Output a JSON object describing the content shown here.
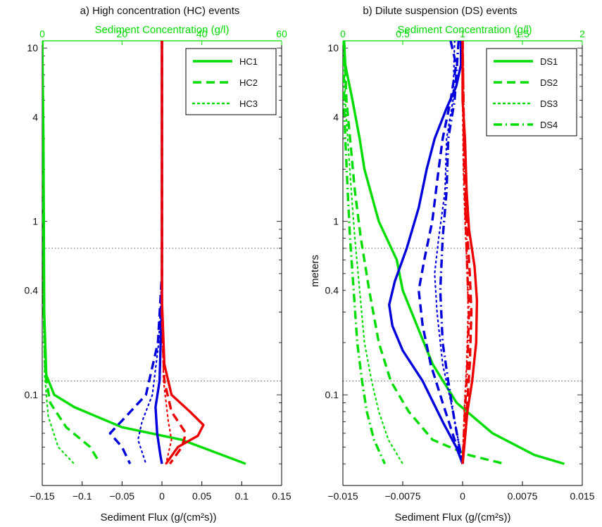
{
  "chart_data": [
    {
      "type": "line",
      "title": "a) High concentration (HC) events",
      "xlabel": "Sediment Flux (g/(cm²s))",
      "x2label": "Sediment Concentration (g/l)",
      "ylabel": "meters",
      "xlim": [
        -0.15,
        0.15
      ],
      "x2lim": [
        0,
        60
      ],
      "ylim": [
        0.03,
        11
      ],
      "yscale": "log",
      "xticks": [
        "-0.15",
        "-0.1",
        "-0.05",
        "0",
        "0.05",
        "0.1",
        "0.15"
      ],
      "x2ticks": [
        "0",
        "20",
        "40",
        "60"
      ],
      "yticks": [
        "0.1",
        "0.4",
        "1",
        "4",
        "10"
      ],
      "hlines": [
        0.7,
        0.12
      ],
      "legend_position": "top-right",
      "legend": [
        {
          "name": "HC1",
          "dash": "solid"
        },
        {
          "name": "HC2",
          "dash": "dashed"
        },
        {
          "name": "HC3",
          "dotted": true
        }
      ],
      "colors": {
        "concentration": "#00dd00",
        "downward_flux": "#0000dd",
        "upward_flux": "#ee0000"
      },
      "series": [
        {
          "name": "HC1",
          "kind": "concentration",
          "dash": "solid",
          "points": [
            [
              0,
              11
            ],
            [
              0.3,
              3
            ],
            [
              0.5,
              0.3
            ],
            [
              1,
              0.13
            ],
            [
              3,
              0.1
            ],
            [
              8,
              0.085
            ],
            [
              20,
              0.065
            ],
            [
              35,
              0.055
            ],
            [
              51,
              0.04
            ]
          ]
        },
        {
          "name": "HC2",
          "kind": "concentration",
          "dash": "dashed",
          "points": [
            [
              0,
              11
            ],
            [
              0.2,
              3
            ],
            [
              0.4,
              0.3
            ],
            [
              0.8,
              0.13
            ],
            [
              2,
              0.09
            ],
            [
              6,
              0.065
            ],
            [
              12,
              0.05
            ],
            [
              14,
              0.042
            ]
          ]
        },
        {
          "name": "HC3",
          "kind": "concentration",
          "dash": "dotted",
          "points": [
            [
              0,
              11
            ],
            [
              0.2,
              3
            ],
            [
              0.3,
              0.3
            ],
            [
              0.6,
              0.13
            ],
            [
              1.5,
              0.075
            ],
            [
              4,
              0.05
            ],
            [
              8,
              0.04
            ]
          ]
        },
        {
          "name": "HC1",
          "kind": "downward_flux",
          "dash": "solid",
          "points": [
            [
              0,
              11
            ],
            [
              0,
              0.35
            ],
            [
              -0.003,
              0.12
            ],
            [
              -0.008,
              0.085
            ],
            [
              -0.006,
              0.06
            ],
            [
              -0.002,
              0.045
            ],
            [
              0,
              0.04
            ]
          ]
        },
        {
          "name": "HC2",
          "kind": "downward_flux",
          "dash": "dashed",
          "points": [
            [
              0,
              11
            ],
            [
              0,
              0.5
            ],
            [
              -0.005,
              0.2
            ],
            [
              -0.02,
              0.1
            ],
            [
              -0.045,
              0.075
            ],
            [
              -0.065,
              0.06
            ],
            [
              -0.05,
              0.05
            ],
            [
              -0.04,
              0.04
            ]
          ]
        },
        {
          "name": "HC3",
          "kind": "downward_flux",
          "dash": "dotted",
          "points": [
            [
              0,
              11
            ],
            [
              0,
              0.5
            ],
            [
              -0.004,
              0.2
            ],
            [
              -0.012,
              0.1
            ],
            [
              -0.025,
              0.07
            ],
            [
              -0.03,
              0.055
            ],
            [
              -0.02,
              0.04
            ]
          ]
        },
        {
          "name": "HC1",
          "kind": "upward_flux",
          "dash": "solid",
          "points": [
            [
              0,
              11
            ],
            [
              0,
              0.35
            ],
            [
              0.003,
              0.15
            ],
            [
              0.012,
              0.1
            ],
            [
              0.035,
              0.08
            ],
            [
              0.052,
              0.067
            ],
            [
              0.045,
              0.058
            ],
            [
              0.02,
              0.05
            ],
            [
              0.005,
              0.04
            ]
          ]
        },
        {
          "name": "HC2",
          "kind": "upward_flux",
          "dash": "dashed",
          "points": [
            [
              0,
              11
            ],
            [
              0,
              0.3
            ],
            [
              0.003,
              0.12
            ],
            [
              0.012,
              0.08
            ],
            [
              0.03,
              0.06
            ],
            [
              0.025,
              0.05
            ],
            [
              0.01,
              0.04
            ]
          ]
        },
        {
          "name": "HC3",
          "kind": "upward_flux",
          "dash": "dotted",
          "points": [
            [
              0,
              11
            ],
            [
              0,
              0.3
            ],
            [
              0.002,
              0.12
            ],
            [
              0.008,
              0.07
            ],
            [
              0.012,
              0.055
            ],
            [
              0.005,
              0.04
            ]
          ]
        }
      ]
    },
    {
      "type": "line",
      "title": "b) Dilute suspension (DS) events",
      "xlabel": "Sediment Flux (g/(cm²s))",
      "x2label": "Sediment Concentration (g/l)",
      "ylabel": "meters",
      "xlim": [
        -0.015,
        0.015
      ],
      "x2lim": [
        0,
        2
      ],
      "ylim": [
        0.03,
        11
      ],
      "yscale": "log",
      "xticks": [
        "-0.015",
        "-0.0075",
        "0",
        "0.0075",
        "0.015"
      ],
      "x2ticks": [
        "0",
        "0.5",
        "1",
        "1.5",
        "2"
      ],
      "yticks": [
        "0.1",
        "0.4",
        "1",
        "4",
        "10"
      ],
      "hlines": [
        0.7,
        0.12
      ],
      "legend_position": "top-right",
      "legend": [
        {
          "name": "DS1",
          "dash": "solid"
        },
        {
          "name": "DS2",
          "dash": "dashed"
        },
        {
          "name": "DS3",
          "dotted": true
        },
        {
          "name": "DS4",
          "dash": "dashdot"
        }
      ],
      "colors": {
        "concentration": "#00dd00",
        "downward_flux": "#0000dd",
        "upward_flux": "#ee0000"
      },
      "series": [
        {
          "name": "DS1",
          "kind": "concentration",
          "dash": "solid",
          "points": [
            [
              0.01,
              11
            ],
            [
              0.02,
              8
            ],
            [
              0.08,
              5
            ],
            [
              0.14,
              3
            ],
            [
              0.18,
              2
            ],
            [
              0.3,
              1
            ],
            [
              0.45,
              0.6
            ],
            [
              0.5,
              0.4
            ],
            [
              0.62,
              0.25
            ],
            [
              0.75,
              0.15
            ],
            [
              0.95,
              0.09
            ],
            [
              1.25,
              0.06
            ],
            [
              1.6,
              0.045
            ],
            [
              1.85,
              0.04
            ]
          ]
        },
        {
          "name": "DS2",
          "kind": "concentration",
          "dash": "dashed",
          "points": [
            [
              0.01,
              11
            ],
            [
              0.03,
              5
            ],
            [
              0.06,
              3
            ],
            [
              0.1,
              1.5
            ],
            [
              0.15,
              0.8
            ],
            [
              0.22,
              0.4
            ],
            [
              0.3,
              0.2
            ],
            [
              0.4,
              0.12
            ],
            [
              0.55,
              0.08
            ],
            [
              0.75,
              0.055
            ],
            [
              1.05,
              0.045
            ],
            [
              1.35,
              0.04
            ]
          ]
        },
        {
          "name": "DS3",
          "kind": "concentration",
          "dash": "dotted",
          "points": [
            [
              0.01,
              11
            ],
            [
              0.02,
              5
            ],
            [
              0.04,
              3
            ],
            [
              0.07,
              1.5
            ],
            [
              0.1,
              0.8
            ],
            [
              0.14,
              0.4
            ],
            [
              0.18,
              0.2
            ],
            [
              0.24,
              0.12
            ],
            [
              0.3,
              0.08
            ],
            [
              0.38,
              0.055
            ],
            [
              0.5,
              0.04
            ]
          ]
        },
        {
          "name": "DS4",
          "kind": "concentration",
          "dash": "dashdot",
          "points": [
            [
              0.005,
              11
            ],
            [
              0.01,
              5
            ],
            [
              0.02,
              3
            ],
            [
              0.04,
              1.5
            ],
            [
              0.06,
              0.8
            ],
            [
              0.09,
              0.4
            ],
            [
              0.12,
              0.2
            ],
            [
              0.16,
              0.12
            ],
            [
              0.2,
              0.08
            ],
            [
              0.26,
              0.055
            ],
            [
              0.35,
              0.04
            ]
          ]
        },
        {
          "name": "DS1",
          "kind": "downward_flux",
          "dash": "solid",
          "points": [
            [
              -0.0002,
              11
            ],
            [
              -0.0002,
              8
            ],
            [
              -0.0008,
              6
            ],
            [
              -0.002,
              4.5
            ],
            [
              -0.0035,
              3
            ],
            [
              -0.0045,
              2
            ],
            [
              -0.0055,
              1.2
            ],
            [
              -0.007,
              0.7
            ],
            [
              -0.0085,
              0.45
            ],
            [
              -0.0092,
              0.33
            ],
            [
              -0.0088,
              0.25
            ],
            [
              -0.0075,
              0.18
            ],
            [
              -0.005,
              0.12
            ],
            [
              -0.0025,
              0.07
            ],
            [
              -0.0008,
              0.05
            ],
            [
              0,
              0.04
            ]
          ]
        },
        {
          "name": "DS2",
          "kind": "downward_flux",
          "dash": "dashed",
          "points": [
            [
              -0.0015,
              11
            ],
            [
              -0.0008,
              8
            ],
            [
              -0.0015,
              5
            ],
            [
              -0.0025,
              3
            ],
            [
              -0.003,
              2
            ],
            [
              -0.0038,
              1
            ],
            [
              -0.0048,
              0.6
            ],
            [
              -0.0055,
              0.4
            ],
            [
              -0.005,
              0.25
            ],
            [
              -0.004,
              0.15
            ],
            [
              -0.0025,
              0.09
            ],
            [
              -0.001,
              0.055
            ],
            [
              0,
              0.04
            ]
          ]
        },
        {
          "name": "DS3",
          "kind": "downward_flux",
          "dash": "dotted",
          "points": [
            [
              -0.001,
              11
            ],
            [
              -0.0012,
              5
            ],
            [
              -0.002,
              3
            ],
            [
              -0.0022,
              1.5
            ],
            [
              -0.003,
              0.8
            ],
            [
              -0.0035,
              0.5
            ],
            [
              -0.0032,
              0.3
            ],
            [
              -0.0025,
              0.15
            ],
            [
              -0.0012,
              0.08
            ],
            [
              0,
              0.04
            ]
          ]
        },
        {
          "name": "DS4",
          "kind": "downward_flux",
          "dash": "dashdot",
          "points": [
            [
              -0.0005,
              11
            ],
            [
              -0.001,
              5
            ],
            [
              -0.0018,
              3
            ],
            [
              -0.002,
              1.5
            ],
            [
              -0.0025,
              0.8
            ],
            [
              -0.0028,
              0.4
            ],
            [
              -0.0025,
              0.2
            ],
            [
              -0.0018,
              0.12
            ],
            [
              -0.001,
              0.07
            ],
            [
              0,
              0.04
            ]
          ]
        },
        {
          "name": "DS1",
          "kind": "upward_flux",
          "dash": "solid",
          "points": [
            [
              0,
              11
            ],
            [
              0,
              5
            ],
            [
              0.0003,
              3
            ],
            [
              0.0005,
              1.5
            ],
            [
              0.0008,
              0.9
            ],
            [
              0.0015,
              0.55
            ],
            [
              0.0018,
              0.35
            ],
            [
              0.0017,
              0.2
            ],
            [
              0.0012,
              0.12
            ],
            [
              0.0006,
              0.08
            ],
            [
              0.0002,
              0.05
            ],
            [
              0,
              0.04
            ]
          ]
        },
        {
          "name": "DS2",
          "kind": "upward_flux",
          "dash": "dashed",
          "points": [
            [
              0,
              11
            ],
            [
              0.0001,
              5
            ],
            [
              0.0003,
              2
            ],
            [
              0.0005,
              1
            ],
            [
              0.0009,
              0.5
            ],
            [
              0.0011,
              0.3
            ],
            [
              0.0009,
              0.15
            ],
            [
              0.0005,
              0.08
            ],
            [
              0,
              0.04
            ]
          ]
        },
        {
          "name": "DS3",
          "kind": "upward_flux",
          "dash": "dotted",
          "points": [
            [
              0,
              11
            ],
            [
              0,
              5
            ],
            [
              0.0001,
              2
            ],
            [
              0.0003,
              1
            ],
            [
              0.0006,
              0.5
            ],
            [
              0.0007,
              0.3
            ],
            [
              0.0005,
              0.15
            ],
            [
              0.0002,
              0.08
            ],
            [
              0,
              0.04
            ]
          ]
        },
        {
          "name": "DS4",
          "kind": "upward_flux",
          "dash": "dashdot",
          "points": [
            [
              0,
              11
            ],
            [
              0.0001,
              5
            ],
            [
              0.0002,
              2
            ],
            [
              0.0004,
              1
            ],
            [
              0.0006,
              0.5
            ],
            [
              0.0008,
              0.3
            ],
            [
              0.0006,
              0.15
            ],
            [
              0.0003,
              0.08
            ],
            [
              0,
              0.04
            ]
          ]
        }
      ]
    }
  ]
}
